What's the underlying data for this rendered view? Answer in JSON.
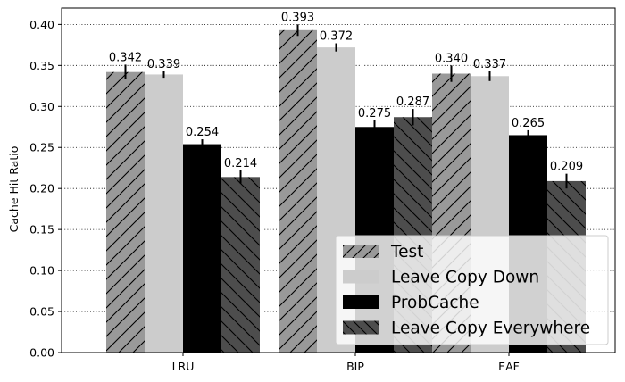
{
  "chart_data": {
    "type": "bar",
    "title": "",
    "xlabel": "",
    "ylabel": "Cache Hit Ratio",
    "ylim": [
      0,
      0.42
    ],
    "yticks": [
      "0.00",
      "0.05",
      "0.10",
      "0.15",
      "0.20",
      "0.25",
      "0.30",
      "0.35",
      "0.40"
    ],
    "ytick_values": [
      0,
      0.05,
      0.1,
      0.15,
      0.2,
      0.25,
      0.3,
      0.35,
      0.4
    ],
    "grid": "horizontal-dotted",
    "legend_position": "bottom-right",
    "categories": [
      "LRU",
      "BIP",
      "EAF"
    ],
    "series": [
      {
        "name": "Test",
        "color": "#999999",
        "hatch": "forward-diagonal",
        "values": [
          0.342,
          0.393,
          0.34
        ],
        "labels": [
          "0.342",
          "0.393",
          "0.340"
        ],
        "errors": [
          0.009,
          0.007,
          0.01
        ]
      },
      {
        "name": "Leave Copy Down",
        "color": "#cccccc",
        "hatch": "none",
        "values": [
          0.339,
          0.372,
          0.337
        ],
        "labels": [
          "0.339",
          "0.372",
          "0.337"
        ],
        "errors": [
          0.004,
          0.005,
          0.006
        ]
      },
      {
        "name": "ProbCache",
        "color": "#000000",
        "hatch": "none",
        "values": [
          0.254,
          0.275,
          0.265
        ],
        "labels": [
          "0.254",
          "0.275",
          "0.265"
        ],
        "errors": [
          0.006,
          0.008,
          0.006
        ]
      },
      {
        "name": "Leave Copy Everywhere",
        "color": "#4d4d4d",
        "hatch": "back-diagonal",
        "values": [
          0.214,
          0.287,
          0.209
        ],
        "labels": [
          "0.214",
          "0.287",
          "0.209"
        ],
        "errors": [
          0.008,
          0.01,
          0.009
        ]
      }
    ]
  }
}
